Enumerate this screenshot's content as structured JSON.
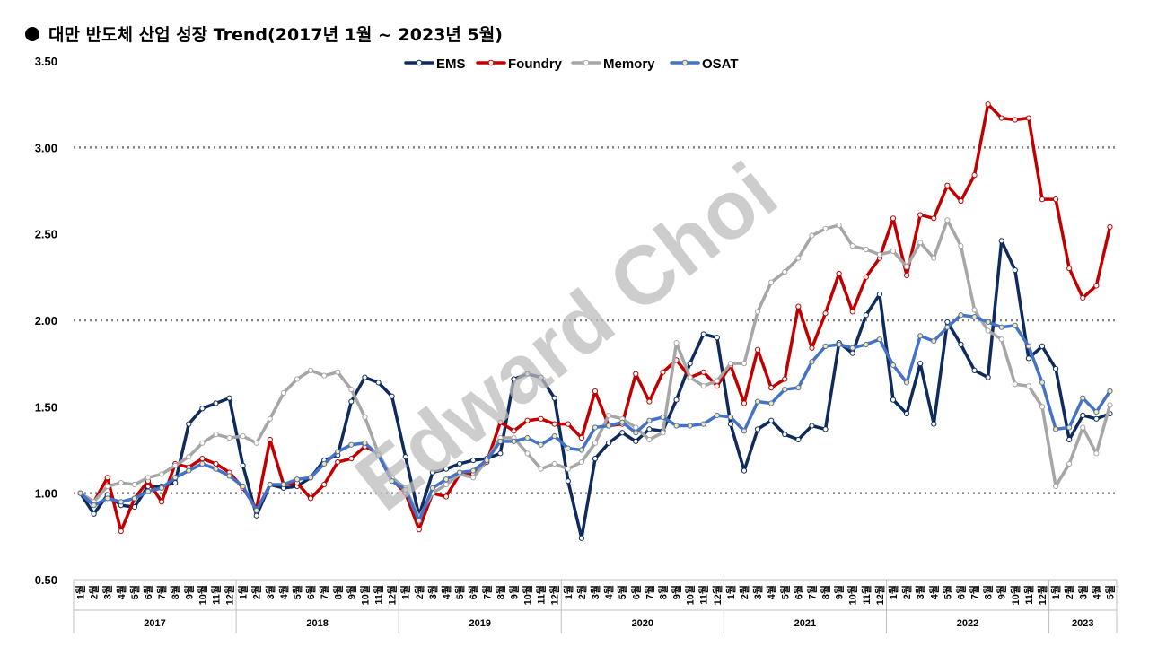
{
  "title": "대만 반도체 산업 성장 Trend(2017년 1월 ~ 2023년 5월)",
  "watermark": "Edward Choi",
  "chart_data": {
    "type": "line",
    "title": "대만 반도체 산업 성장 Trend(2017년 1월 ~ 2023년 5월)",
    "ylim": [
      0.5,
      3.5
    ],
    "y_ticks": [
      "0.50",
      "1.00",
      "1.50",
      "2.00",
      "2.50",
      "3.00",
      "3.50"
    ],
    "grid": "dotted at 1.00, 2.00, 3.00",
    "legend_position": "top-center",
    "month_suffix": "월",
    "years": [
      {
        "label": "2017",
        "months": 12
      },
      {
        "label": "2018",
        "months": 12
      },
      {
        "label": "2019",
        "months": 12
      },
      {
        "label": "2020",
        "months": 12
      },
      {
        "label": "2021",
        "months": 12
      },
      {
        "label": "2022",
        "months": 12
      },
      {
        "label": "2023",
        "months": 5
      }
    ],
    "series": [
      {
        "name": "EMS",
        "color": "#0f2a5c",
        "marker": "#ffffff",
        "values": [
          1.0,
          0.88,
          0.99,
          0.93,
          0.92,
          1.04,
          1.04,
          1.06,
          1.4,
          1.49,
          1.52,
          1.55,
          1.16,
          0.87,
          1.05,
          1.03,
          1.04,
          1.09,
          1.19,
          1.22,
          1.53,
          1.67,
          1.64,
          1.56,
          1.21,
          0.87,
          1.12,
          1.14,
          1.17,
          1.19,
          1.2,
          1.23,
          1.66,
          1.69,
          1.67,
          1.55,
          1.07,
          0.74,
          1.2,
          1.29,
          1.35,
          1.3,
          1.37,
          1.36,
          1.54,
          1.75,
          1.92,
          1.9,
          1.4,
          1.13,
          1.37,
          1.42,
          1.34,
          1.31,
          1.39,
          1.37,
          1.87,
          1.81,
          2.03,
          2.15,
          1.54,
          1.46,
          1.75,
          1.4,
          1.99,
          1.86,
          1.71,
          1.67,
          2.46,
          2.29,
          1.78,
          1.85,
          1.72,
          1.31,
          1.45,
          1.43,
          1.46
        ]
      },
      {
        "name": "Foundry",
        "color": "#c00000",
        "marker": "#ffffff",
        "values": [
          1.0,
          0.95,
          1.09,
          0.78,
          0.97,
          1.07,
          0.95,
          1.17,
          1.15,
          1.2,
          1.17,
          1.12,
          1.03,
          0.91,
          1.31,
          1.05,
          1.06,
          0.97,
          1.05,
          1.18,
          1.2,
          1.27,
          1.23,
          1.08,
          1.0,
          0.79,
          1.0,
          0.98,
          1.11,
          1.11,
          1.18,
          1.41,
          1.36,
          1.42,
          1.43,
          1.4,
          1.4,
          1.32,
          1.59,
          1.39,
          1.4,
          1.69,
          1.53,
          1.7,
          1.77,
          1.67,
          1.7,
          1.62,
          1.74,
          1.52,
          1.83,
          1.61,
          1.66,
          2.08,
          1.84,
          2.04,
          2.27,
          2.05,
          2.25,
          2.36,
          2.59,
          2.26,
          2.61,
          2.59,
          2.78,
          2.69,
          2.84,
          3.25,
          3.17,
          3.16,
          3.17,
          2.7,
          2.7,
          2.3,
          2.13,
          2.2,
          2.54
        ]
      },
      {
        "name": "Memory",
        "color": "#a6a6a6",
        "marker": "#ffffff",
        "values": [
          1.0,
          0.95,
          1.04,
          1.06,
          1.05,
          1.09,
          1.11,
          1.16,
          1.21,
          1.29,
          1.34,
          1.32,
          1.33,
          1.29,
          1.43,
          1.58,
          1.66,
          1.71,
          1.68,
          1.7,
          1.6,
          1.44,
          1.23,
          1.09,
          1.03,
          0.86,
          1.0,
          1.05,
          1.11,
          1.09,
          1.19,
          1.32,
          1.32,
          1.23,
          1.14,
          1.17,
          1.14,
          1.18,
          1.29,
          1.45,
          1.43,
          1.38,
          1.31,
          1.35,
          1.87,
          1.67,
          1.62,
          1.65,
          1.75,
          1.75,
          2.05,
          2.22,
          2.28,
          2.36,
          2.49,
          2.53,
          2.55,
          2.43,
          2.41,
          2.38,
          2.4,
          2.31,
          2.45,
          2.36,
          2.58,
          2.43,
          2.06,
          1.94,
          1.89,
          1.63,
          1.62,
          1.5,
          1.04,
          1.17,
          1.38,
          1.23,
          1.51
        ]
      },
      {
        "name": "OSAT",
        "color": "#4472c4",
        "marker": "#ffe699",
        "values": [
          1.0,
          0.93,
          0.97,
          0.95,
          0.97,
          1.01,
          1.03,
          1.09,
          1.13,
          1.17,
          1.14,
          1.1,
          1.04,
          0.9,
          1.05,
          1.05,
          1.08,
          1.09,
          1.17,
          1.24,
          1.28,
          1.29,
          1.22,
          1.07,
          1.02,
          0.84,
          1.03,
          1.08,
          1.12,
          1.13,
          1.19,
          1.3,
          1.3,
          1.32,
          1.28,
          1.33,
          1.26,
          1.25,
          1.38,
          1.39,
          1.41,
          1.35,
          1.42,
          1.44,
          1.39,
          1.39,
          1.4,
          1.45,
          1.44,
          1.36,
          1.53,
          1.52,
          1.6,
          1.61,
          1.76,
          1.85,
          1.86,
          1.84,
          1.86,
          1.89,
          1.74,
          1.64,
          1.91,
          1.88,
          1.96,
          2.03,
          2.02,
          1.99,
          1.96,
          1.97,
          1.85,
          1.64,
          1.37,
          1.38,
          1.55,
          1.47,
          1.59
        ]
      }
    ]
  }
}
